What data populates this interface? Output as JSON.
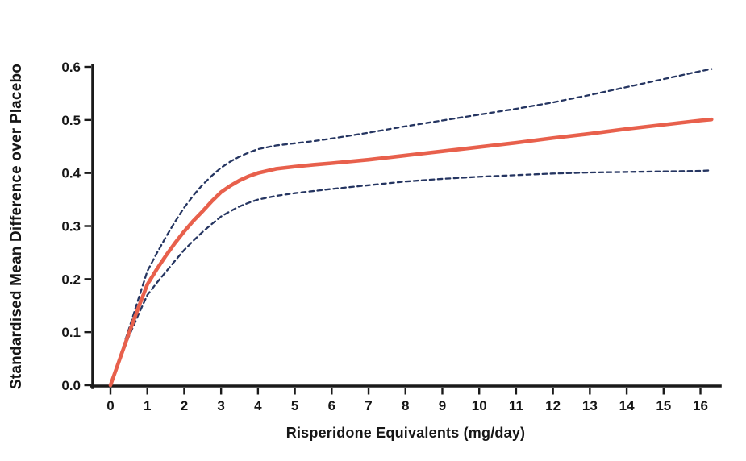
{
  "figure": {
    "background": "#ffffff",
    "axis_color": "#1a1a1a"
  },
  "chart_data": {
    "type": "line",
    "title": "",
    "xlabel": "Risperidone Equivalents (mg/day)",
    "ylabel": "Standardised Mean Difference over Placebo",
    "xlim": [
      0,
      16.5
    ],
    "ylim": [
      0.0,
      0.6
    ],
    "grid": false,
    "legend_position": "none",
    "x_ticks": [
      0,
      1,
      2,
      3,
      4,
      5,
      6,
      7,
      8,
      9,
      10,
      11,
      12,
      13,
      14,
      15,
      16
    ],
    "x_tick_labels": [
      "0",
      "1",
      "2",
      "3",
      "4",
      "5",
      "6",
      "7",
      "8",
      "9",
      "10",
      "11",
      "12",
      "13",
      "14",
      "15",
      "16"
    ],
    "y_ticks": [
      0.0,
      0.1,
      0.2,
      0.3,
      0.4,
      0.5,
      0.6
    ],
    "y_tick_labels": [
      "0.0",
      "0.1",
      "0.2",
      "0.3",
      "0.4",
      "0.5",
      "0.6"
    ],
    "x": [
      0,
      0.25,
      0.5,
      0.75,
      1,
      1.25,
      1.5,
      1.75,
      2,
      2.25,
      2.5,
      2.75,
      3,
      3.25,
      3.5,
      3.75,
      4,
      4.5,
      5,
      5.5,
      6,
      7,
      8,
      9,
      10,
      11,
      12,
      13,
      14,
      15,
      16,
      16.3
    ],
    "series": [
      {
        "name": "mean",
        "style": "solid",
        "color": "#e8604c",
        "width": 4.6,
        "values": [
          0,
          0.049,
          0.098,
          0.145,
          0.19,
          0.218,
          0.244,
          0.268,
          0.29,
          0.31,
          0.328,
          0.347,
          0.364,
          0.376,
          0.386,
          0.394,
          0.4,
          0.408,
          0.412,
          0.4155,
          0.4185,
          0.425,
          0.433,
          0.441,
          0.449,
          0.457,
          0.466,
          0.474,
          0.483,
          0.491,
          0.499,
          0.501
        ]
      },
      {
        "name": "upper_ci",
        "style": "dashed",
        "color": "#253561",
        "width": 2.3,
        "values": [
          0,
          0.053,
          0.106,
          0.161,
          0.215,
          0.248,
          0.279,
          0.308,
          0.335,
          0.358,
          0.378,
          0.395,
          0.41,
          0.4215,
          0.431,
          0.4385,
          0.445,
          0.452,
          0.456,
          0.46,
          0.465,
          0.476,
          0.488,
          0.499,
          0.51,
          0.521,
          0.533,
          0.547,
          0.562,
          0.577,
          0.592,
          0.596
        ]
      },
      {
        "name": "lower_ci",
        "style": "dashed",
        "color": "#253561",
        "width": 2.3,
        "values": [
          0,
          0.046,
          0.092,
          0.132,
          0.17,
          0.1925,
          0.2135,
          0.2345,
          0.255,
          0.2725,
          0.289,
          0.304,
          0.318,
          0.328,
          0.337,
          0.344,
          0.35,
          0.357,
          0.362,
          0.366,
          0.37,
          0.377,
          0.384,
          0.389,
          0.393,
          0.396,
          0.399,
          0.401,
          0.402,
          0.403,
          0.404,
          0.405
        ]
      }
    ]
  }
}
